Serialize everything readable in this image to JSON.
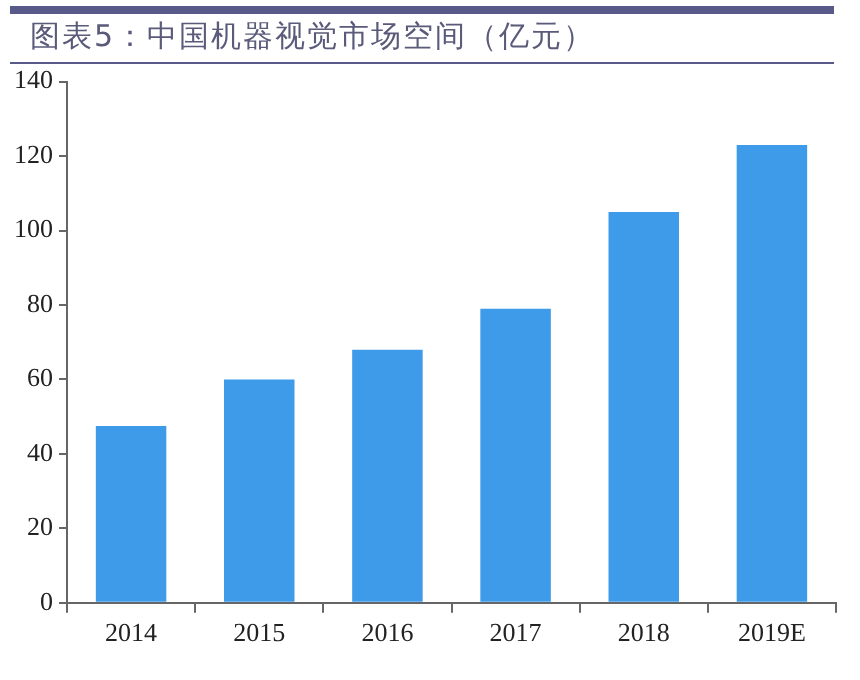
{
  "chart_data": {
    "type": "bar",
    "title": "图表5：中国机器视觉市场空间（亿元）",
    "categories": [
      "2014",
      "2015",
      "2016",
      "2017",
      "2018",
      "2019E"
    ],
    "values": [
      47.5,
      60,
      68,
      79,
      105,
      123
    ],
    "color": "#3d9be9",
    "ylim": [
      0,
      140
    ],
    "yticks": [
      0,
      20,
      40,
      60,
      80,
      100,
      120,
      140
    ],
    "grid": false
  }
}
